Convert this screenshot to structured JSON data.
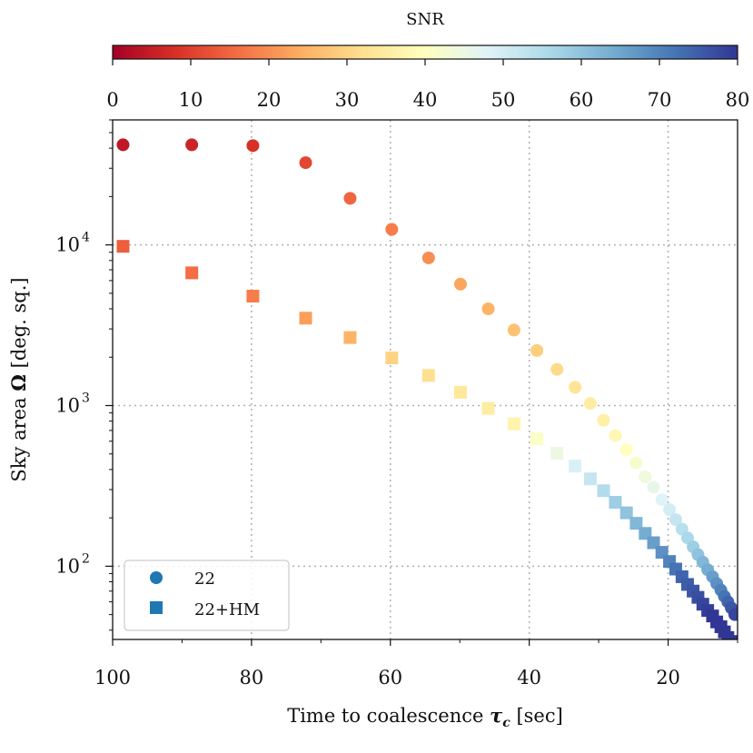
{
  "chart_data": {
    "type": "scatter",
    "xlabel_main": "Time to coalescence ",
    "xlabel_sym": "τ",
    "xlabel_sub": "c",
    "xlabel_unit": " [sec]",
    "ylabel_main": "Sky area ",
    "ylabel_sym": "Ω",
    "ylabel_unit": " [deg. sq.]",
    "x_reversed": true,
    "xlim": [
      100,
      10
    ],
    "xticks": [
      100,
      80,
      60,
      40,
      20
    ],
    "ylim": [
      35,
      60000
    ],
    "yscale": "log",
    "yticks": [
      {
        "base": "10",
        "exp": "2",
        "value": 100
      },
      {
        "base": "10",
        "exp": "3",
        "value": 1000
      },
      {
        "base": "10",
        "exp": "4",
        "value": 10000
      }
    ],
    "grid": true,
    "colorbar": {
      "label": "SNR",
      "range": [
        0,
        80
      ],
      "ticks": [
        0,
        10,
        20,
        30,
        40,
        50,
        60,
        70,
        80
      ],
      "colormap": "RdYlBu"
    },
    "legend": {
      "position": "lower-left",
      "entries": [
        {
          "label": "22",
          "marker": "circle",
          "color": "#1f77b4"
        },
        {
          "label": "22+HM",
          "marker": "square",
          "color": "#1f77b4"
        }
      ]
    },
    "series": [
      {
        "name": "22",
        "marker": "circle",
        "x": [
          98.5,
          88.6,
          79.8,
          72.2,
          65.8,
          59.8,
          54.5,
          49.9,
          45.9,
          42.2,
          38.9,
          36.0,
          33.4,
          31.2,
          29.3,
          27.6,
          26.0,
          24.6,
          23.3,
          22.1,
          20.9,
          19.8,
          18.9,
          18.0,
          17.2,
          16.4,
          15.7,
          15.0,
          14.3,
          13.6,
          13.0,
          12.4,
          11.9,
          11.4,
          10.9,
          10.4
        ],
        "y": [
          42000,
          42000,
          41500,
          32500,
          19500,
          12500,
          8300,
          5700,
          4000,
          2950,
          2200,
          1680,
          1300,
          1030,
          810,
          650,
          530,
          440,
          360,
          310,
          260,
          225,
          195,
          170,
          150,
          132,
          118,
          106,
          95,
          86,
          78,
          71,
          65,
          60,
          55,
          50
        ],
        "snr": [
          4,
          6,
          8,
          11,
          15,
          18,
          20,
          23,
          25,
          27,
          29,
          31,
          33,
          35,
          36,
          38,
          40,
          42,
          44,
          46,
          48,
          50,
          52,
          54,
          56,
          58,
          60,
          62,
          64,
          66,
          68,
          70,
          72,
          74,
          76,
          78
        ]
      },
      {
        "name": "22+HM",
        "marker": "square",
        "x": [
          98.5,
          88.6,
          79.8,
          72.2,
          65.8,
          59.8,
          54.5,
          49.9,
          45.9,
          42.2,
          38.9,
          36.0,
          33.4,
          31.2,
          29.3,
          27.6,
          26.0,
          24.6,
          23.3,
          22.1,
          20.9,
          19.8,
          18.9,
          18.0,
          17.2,
          16.4,
          15.7,
          15.0,
          14.3,
          13.6,
          13.0,
          12.4,
          11.9,
          11.4,
          10.9,
          10.4
        ],
        "y": [
          9800,
          6700,
          4800,
          3500,
          2650,
          1980,
          1540,
          1210,
          960,
          770,
          620,
          505,
          420,
          350,
          295,
          250,
          215,
          185,
          160,
          140,
          122,
          107,
          96,
          86,
          77,
          70,
          64,
          58,
          53,
          49,
          45,
          42,
          39,
          36,
          34,
          32
        ],
        "snr": [
          14,
          16,
          18,
          22,
          25,
          30,
          32,
          34,
          35,
          37,
          41,
          45,
          49,
          52,
          55,
          58,
          60,
          62,
          64,
          66,
          68,
          70,
          72,
          74,
          75,
          76,
          77,
          78,
          79,
          80,
          80,
          80,
          80,
          80,
          80,
          80
        ]
      }
    ]
  }
}
